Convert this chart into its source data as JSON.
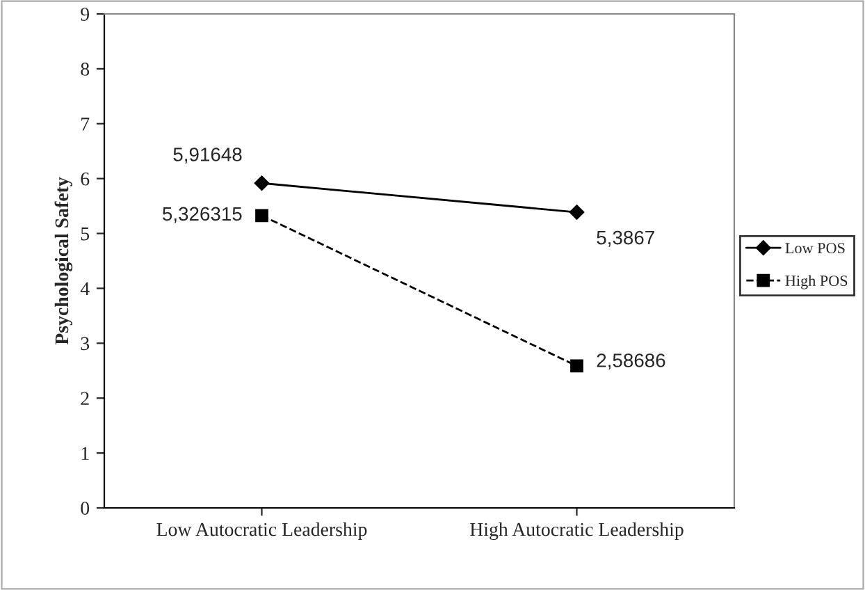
{
  "chart_data": {
    "type": "line",
    "ylabel": "Psychological Safety",
    "categories": [
      "Low Autocratic Leadership",
      "High Autocratic Leadership"
    ],
    "series": [
      {
        "name": "Low POS",
        "color": "#000000",
        "values": [
          5.91648,
          5.3867
        ],
        "value_labels": [
          "5,91648",
          "5,3867"
        ],
        "marker": "diamond",
        "line_style": "solid"
      },
      {
        "name": "High POS",
        "color": "#000000",
        "values": [
          5.326315,
          2.58686
        ],
        "value_labels": [
          "5,326315",
          "2,58686"
        ],
        "marker": "square",
        "line_style": "dashed"
      }
    ],
    "ylim": [
      0,
      9
    ],
    "yticks": [
      0,
      1,
      2,
      3,
      4,
      5,
      6,
      7,
      8,
      9
    ],
    "grid": false,
    "legend": "right"
  }
}
